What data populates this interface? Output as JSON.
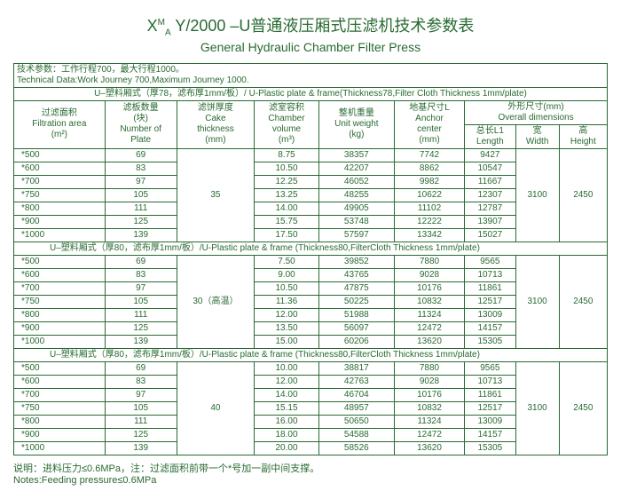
{
  "title_part1": "X",
  "title_sup": "M",
  "title_sub": "A",
  "title_part2": " Y/2000 –U普通液压厢式压滤机技术参数表",
  "subtitle": "General Hydraulic Chamber Filter Press",
  "tech_cn": "技术参数：工作行程700，最大行程1000。",
  "tech_en": "Technical Data:Work Journey 700,Maximum Journey 1000.",
  "material": "U–塑料厢式（厚78，滤布厚1mm/板）/ U-Plastic plate & frame(Thickness78,Filter Cloth Thickness 1mm/plate)",
  "h_area_cn": "过滤面积",
  "h_area_en": "Filtration area",
  "h_area_u": "(m²)",
  "h_plate_cn": "滤板数量",
  "h_plate_cn2": "(块)",
  "h_plate_en": "Number of",
  "h_plate_en2": "Plate",
  "h_cake_cn": "滤饼厚度",
  "h_cake_en": "Cake",
  "h_cake_en2": "thickness",
  "h_cake_u": "(mm)",
  "h_vol_cn": "滤室容积",
  "h_vol_en": "Chamber",
  "h_vol_en2": "volume",
  "h_vol_u": "(m³)",
  "h_wt_cn": "整机重量",
  "h_wt_en": "Unit weight",
  "h_wt_u": "(kg)",
  "h_anc_cn": "地基尺寸L",
  "h_anc_en": "Anchor",
  "h_anc_en2": "center",
  "h_anc_u": "(mm)",
  "h_dim_cn": "外形尺寸(mm)",
  "h_dim_en": "Overall  dimensions",
  "h_len_cn": "总长L1",
  "h_len_en": "Length",
  "h_w_cn": "宽",
  "h_w_en": "Width",
  "h_h_cn": "高",
  "h_h_en": "Height",
  "cake1": "35",
  "cake2": "30（高温）",
  "cake3": "40",
  "sep2": "U–塑料厢式（厚80，滤布厚1mm/板）/U-Plastic plate & frame (Thickness80,FilterCloth Thickness 1mm/plate)",
  "sep3": "U–塑料厢式（厚80，滤布厚1mm/板）/U-Plastic plate & frame (Thickness80,FilterCloth Thickness 1mm/plate)",
  "w1": "3100",
  "h1": "2450",
  "w2": "3100",
  "h2": "2450",
  "w3": "3100",
  "h3": "2450",
  "s1": [
    [
      "*500",
      "69",
      "8.75",
      "38357",
      "7742",
      "9427"
    ],
    [
      "*600",
      "83",
      "10.50",
      "42207",
      "8862",
      "10547"
    ],
    [
      "*700",
      "97",
      "12.25",
      "46052",
      "9982",
      "11667"
    ],
    [
      "*750",
      "105",
      "13.25",
      "48255",
      "10622",
      "12307"
    ],
    [
      "*800",
      "111",
      "14.00",
      "49905",
      "11102",
      "12787"
    ],
    [
      "*900",
      "125",
      "15.75",
      "53748",
      "12222",
      "13907"
    ],
    [
      "*1000",
      "139",
      "17.50",
      "57597",
      "13342",
      "15027"
    ]
  ],
  "s2": [
    [
      "*500",
      "69",
      "7.50",
      "39852",
      "7880",
      "9565"
    ],
    [
      "*600",
      "83",
      "9.00",
      "43765",
      "9028",
      "10713"
    ],
    [
      "*700",
      "97",
      "10.50",
      "47875",
      "10176",
      "11861"
    ],
    [
      "*750",
      "105",
      "11.36",
      "50225",
      "10832",
      "12517"
    ],
    [
      "*800",
      "111",
      "12.00",
      "51988",
      "11324",
      "13009"
    ],
    [
      "*900",
      "125",
      "13.50",
      "56097",
      "12472",
      "14157"
    ],
    [
      "*1000",
      "139",
      "15.00",
      "60206",
      "13620",
      "15305"
    ]
  ],
  "s3": [
    [
      "*500",
      "69",
      "10.00",
      "38817",
      "7880",
      "9565"
    ],
    [
      "*600",
      "83",
      "12.00",
      "42763",
      "9028",
      "10713"
    ],
    [
      "*700",
      "97",
      "14.00",
      "46704",
      "10176",
      "11861"
    ],
    [
      "*750",
      "105",
      "15.15",
      "48957",
      "10832",
      "12517"
    ],
    [
      "*800",
      "111",
      "16.00",
      "50650",
      "11324",
      "13009"
    ],
    [
      "*900",
      "125",
      "18.00",
      "54588",
      "12472",
      "14157"
    ],
    [
      "*1000",
      "139",
      "20.00",
      "58526",
      "13620",
      "15305"
    ]
  ],
  "note_cn": "说明：进料压力≤0.6MPa，注：过滤面积前带一个*号加一副中间支撑。",
  "note_en": "Notes:Feeding pressure≤0.6MPa"
}
